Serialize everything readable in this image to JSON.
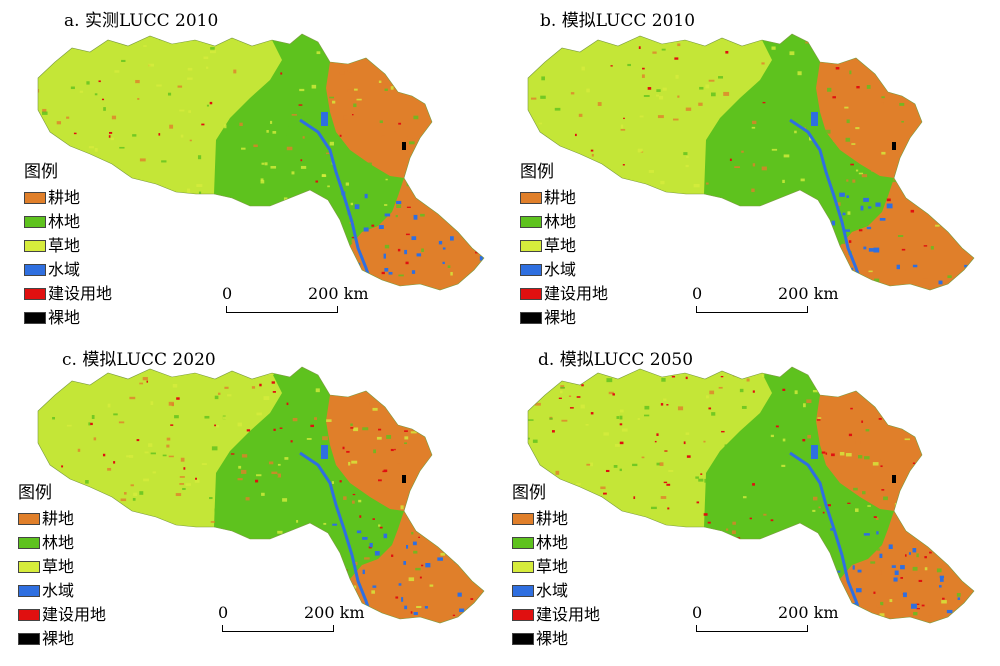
{
  "panels": [
    {
      "title": "a. 实测LUCC 2010"
    },
    {
      "title": "b. 模拟LUCC 2010"
    },
    {
      "title": "c. 模拟LUCC 2020"
    },
    {
      "title": "d. 模拟LUCC 2050"
    }
  ],
  "legend": {
    "title": "图例",
    "items": [
      {
        "label": "耕地",
        "color": "#e07f2a"
      },
      {
        "label": "林地",
        "color": "#5ec21e"
      },
      {
        "label": "草地",
        "color": "#d6ec3c"
      },
      {
        "label": "水域",
        "color": "#2f6fe0"
      },
      {
        "label": "建设用地",
        "color": "#e01010"
      },
      {
        "label": "裸地",
        "color": "#000000"
      }
    ]
  },
  "scalebar": {
    "start_label": "0",
    "end_label": "200 km"
  }
}
